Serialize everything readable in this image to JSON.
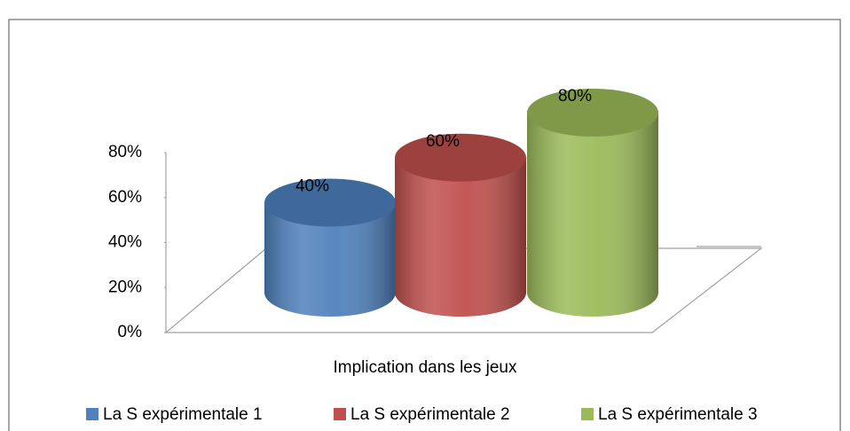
{
  "chart_data": {
    "type": "bar3d",
    "categories": [
      "Implication dans les jeux"
    ],
    "series": [
      {
        "name": "La S expérimentale 1",
        "color": "#4f81bd",
        "values": [
          40
        ],
        "value_labels": [
          "40%"
        ]
      },
      {
        "name": "La S expérimentale 2",
        "color": "#c0504d",
        "values": [
          60
        ],
        "value_labels": [
          "60%"
        ]
      },
      {
        "name": "La S expérimentale 3",
        "color": "#9bbb59",
        "values": [
          80
        ],
        "value_labels": [
          "80%"
        ]
      }
    ],
    "ylim": [
      0,
      80
    ],
    "yticks": [
      {
        "value": 0,
        "label": "0%"
      },
      {
        "value": 20,
        "label": "20%"
      },
      {
        "value": 40,
        "label": "40%"
      },
      {
        "value": 60,
        "label": "60%"
      },
      {
        "value": 80,
        "label": "80%"
      }
    ],
    "grid": false,
    "legend": "bottom"
  }
}
